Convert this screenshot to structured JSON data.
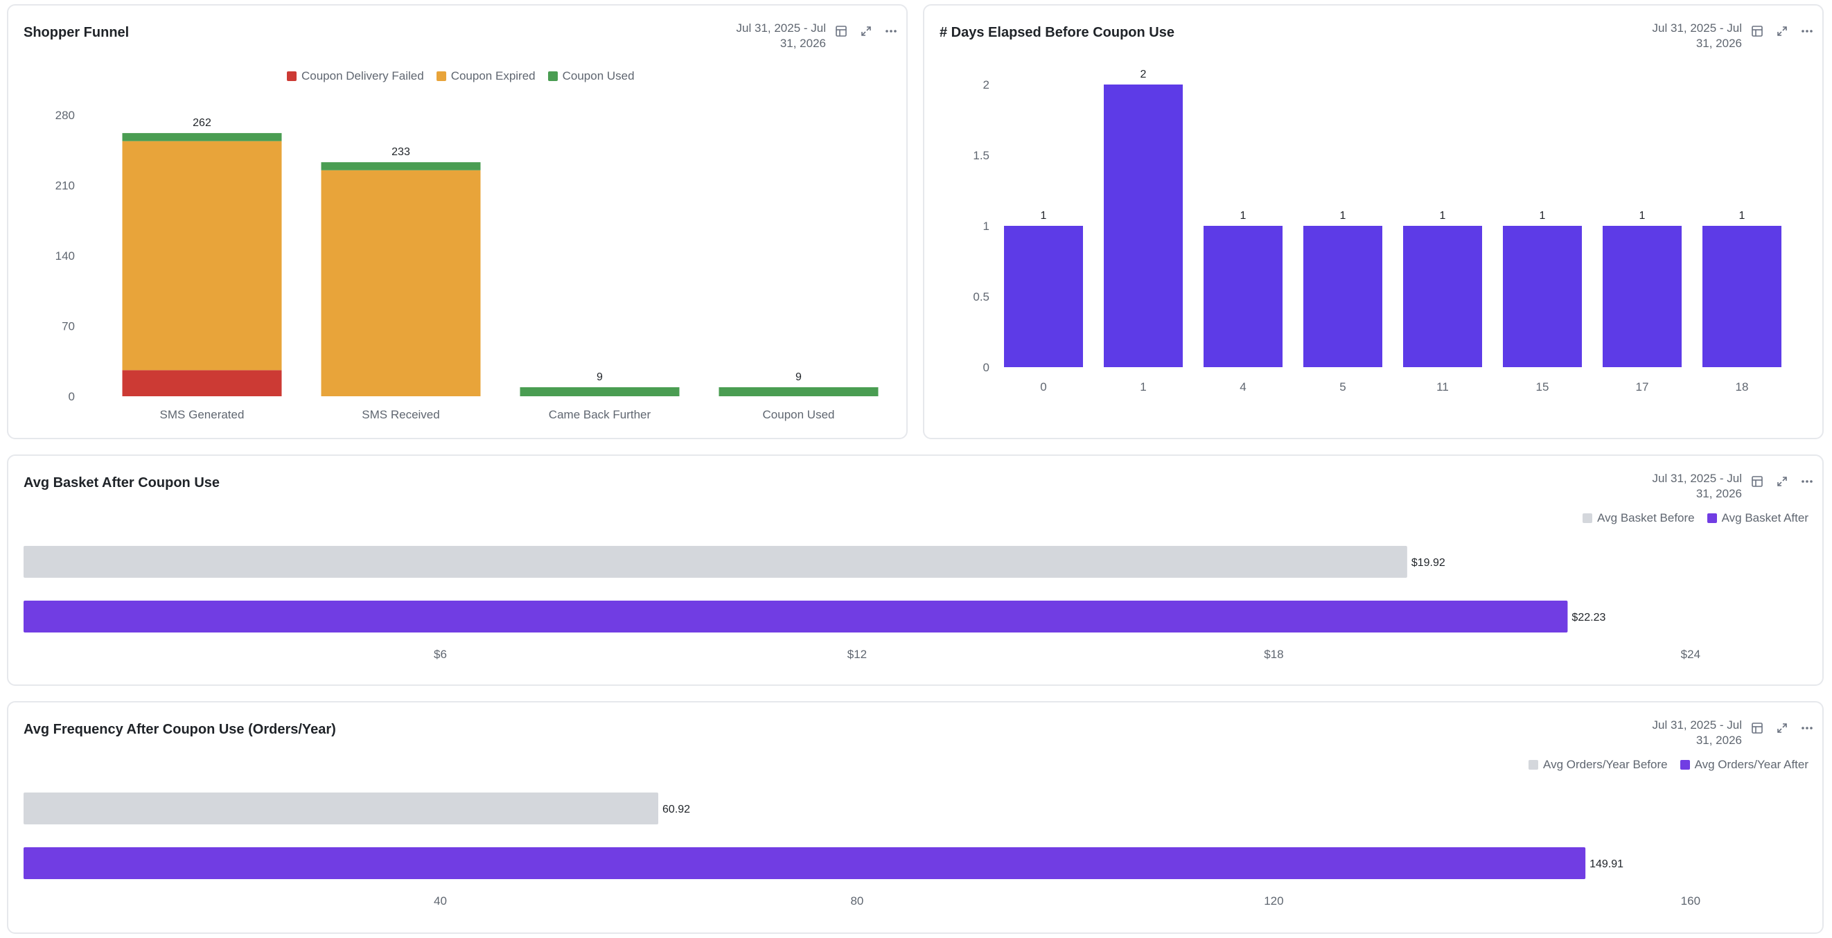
{
  "cards": [
    {
      "title": "Shopper Funnel",
      "date_range_line1": "Jul 31, 2025 - Jul",
      "date_range_line2": "31, 2026"
    },
    {
      "title": "# Days Elapsed Before Coupon Use",
      "date_range_line1": "Jul 31, 2025 - Jul",
      "date_range_line2": "31, 2026"
    },
    {
      "title": "Avg Basket After Coupon Use",
      "date_range_line1": "Jul 31, 2025 - Jul",
      "date_range_line2": "31, 2026"
    },
    {
      "title": "Avg Frequency After Coupon Use (Orders/Year)",
      "date_range_line1": "Jul 31, 2025 - Jul",
      "date_range_line2": "31, 2026"
    }
  ],
  "icons": {
    "table": "table-icon",
    "expand": "expand-icon",
    "more": "more-icon"
  },
  "colors": {
    "red": "#cc3a34",
    "orange": "#e8a43a",
    "green": "#4a9d52",
    "purple_days": "#5d3be7",
    "purple_after": "#713de3",
    "gray_before": "#d4d7dc",
    "axis_text": "#5f6670",
    "grid": "#eef0f2"
  },
  "chart_data": [
    {
      "type": "bar",
      "stacked": true,
      "categories": [
        "SMS Generated",
        "SMS Received",
        "Came Back Further",
        "Coupon Used"
      ],
      "series": [
        {
          "name": "Coupon Delivery Failed",
          "values": [
            26,
            0,
            0,
            0
          ]
        },
        {
          "name": "Coupon Expired",
          "values": [
            228,
            225,
            0,
            0
          ]
        },
        {
          "name": "Coupon Used",
          "values": [
            8,
            8,
            9,
            9
          ]
        }
      ],
      "totals": [
        "262",
        "233",
        "9",
        "9"
      ],
      "yticks": [
        "0",
        "70",
        "140",
        "210",
        "280"
      ],
      "ylim": [
        0,
        280
      ],
      "legend": "top-center",
      "grid": false
    },
    {
      "type": "bar",
      "categories": [
        "0",
        "1",
        "4",
        "5",
        "11",
        "15",
        "17",
        "18"
      ],
      "values": [
        1,
        2,
        1,
        1,
        1,
        1,
        1,
        1
      ],
      "labels": [
        "1",
        "2",
        "1",
        "1",
        "1",
        "1",
        "1",
        "1"
      ],
      "yticks": [
        "0",
        "0.5",
        "1",
        "1.5",
        "2"
      ],
      "ylim": [
        0,
        2
      ],
      "grid": false
    },
    {
      "type": "bar",
      "orientation": "horizontal",
      "series": [
        {
          "name": "Avg Basket Before",
          "values": [
            19.92
          ],
          "label": "$19.92"
        },
        {
          "name": "Avg Basket After",
          "values": [
            22.23
          ],
          "label": "$22.23"
        }
      ],
      "xticks": [
        "$6",
        "$12",
        "$18",
        "$24"
      ],
      "xlim": [
        0,
        24.6
      ],
      "legend": "top-right",
      "grid": false
    },
    {
      "type": "bar",
      "orientation": "horizontal",
      "series": [
        {
          "name": "Avg Orders/Year Before",
          "values": [
            60.92
          ],
          "label": "60.92"
        },
        {
          "name": "Avg Orders/Year After",
          "values": [
            149.91
          ],
          "label": "149.91"
        }
      ],
      "xticks": [
        "40",
        "80",
        "120",
        "160"
      ],
      "xlim": [
        0,
        164
      ],
      "legend": "top-right",
      "grid": false
    }
  ]
}
